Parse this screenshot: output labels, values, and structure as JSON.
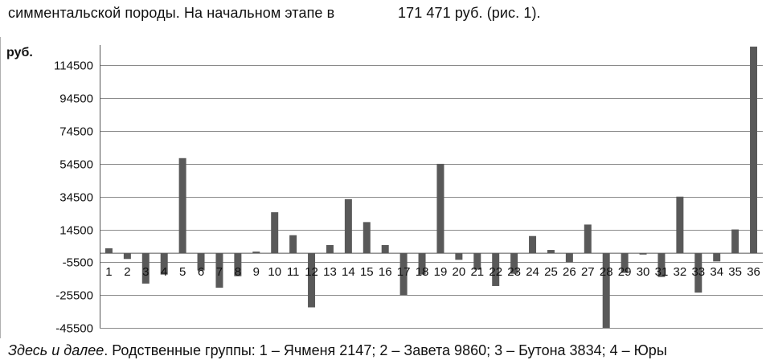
{
  "text": {
    "top_left": "симментальской породы. На начальном этапе в",
    "top_right": "171 471 руб. (рис. 1).",
    "caption_italic": "Здесь и далее",
    "caption_rest": ". Родственные группы: 1 – Ячменя 2147; 2 – Завета 9860; 3 – Бутона 3834; 4 – Юры"
  },
  "chart_data": {
    "type": "bar",
    "unit_label": "руб.",
    "categories": [
      "1",
      "2",
      "3",
      "4",
      "5",
      "6",
      "7",
      "8",
      "9",
      "10",
      "11",
      "12",
      "13",
      "14",
      "15",
      "16",
      "17",
      "18",
      "19",
      "20",
      "21",
      "22",
      "23",
      "24",
      "25",
      "26",
      "27",
      "28",
      "29",
      "30",
      "31",
      "32",
      "33",
      "34",
      "35",
      "36"
    ],
    "values": [
      3000,
      -3500,
      -18500,
      -13000,
      58000,
      -10500,
      -21000,
      -14000,
      1000,
      25000,
      11000,
      -33000,
      5000,
      33000,
      19000,
      5000,
      -25500,
      -13000,
      54500,
      -4000,
      -10000,
      -20000,
      -12500,
      10500,
      2000,
      -5500,
      17500,
      -45500,
      -12000,
      -800,
      -14500,
      34500,
      -24000,
      -5000,
      14500,
      126000
    ],
    "yticks": [
      -45500,
      -25500,
      -5500,
      14500,
      34500,
      54500,
      74500,
      94500,
      114500
    ],
    "ylim": [
      -45500,
      126000
    ],
    "grid": true,
    "bar_color": "#595959",
    "grid_color": "#8a8a8a"
  }
}
